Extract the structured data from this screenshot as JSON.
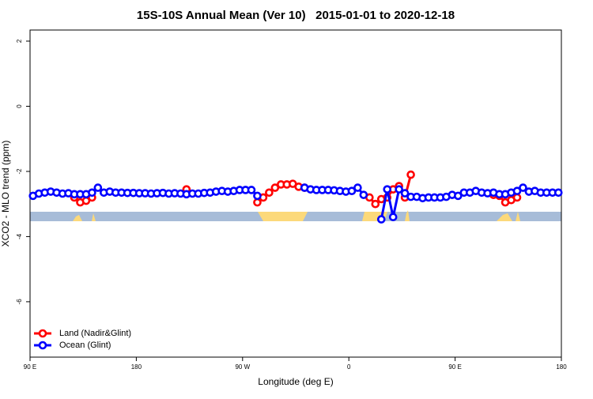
{
  "chart_data": {
    "type": "line",
    "title": "15S-10S Annual Mean (Ver 10)   2015-01-01 to 2020-12-18",
    "x_label": "Longitude (deg E)",
    "y_label": "XCO2 - MLO trend (ppm)",
    "xlim": [
      90,
      540
    ],
    "ylim": [
      -7.7,
      2.34
    ],
    "xticks": [
      {
        "value": 90,
        "label": "90 E"
      },
      180,
      {
        "value": 270,
        "label": "90 W"
      },
      {
        "value": 360,
        "label": "0"
      },
      {
        "value": 450,
        "label": "90 E"
      },
      {
        "value": 540,
        "label": "180"
      }
    ],
    "yticks": [
      -6,
      -4,
      -2,
      0,
      2
    ],
    "legend": "bottom-left",
    "x": [
      92.5,
      97.5,
      102.5,
      107.5,
      112.5,
      117.5,
      122.5,
      127.5,
      132.5,
      137.5,
      142.5,
      147.5,
      152.5,
      157.5,
      162.5,
      167.5,
      172.5,
      177.5,
      182.5,
      187.5,
      192.5,
      197.5,
      202.5,
      207.5,
      212.5,
      217.5,
      222.5,
      227.5,
      232.5,
      237.5,
      242.5,
      247.5,
      252.5,
      257.5,
      262.5,
      267.5,
      272.5,
      277.5,
      282.5,
      287.5,
      292.5,
      297.5,
      302.5,
      307.5,
      312.5,
      317.5,
      322.5,
      327.5,
      332.5,
      337.5,
      342.5,
      347.5,
      352.5,
      357.5,
      362.5,
      367.5,
      372.5,
      377.5,
      382.5,
      387.5,
      392.5,
      397.5,
      402.5,
      407.5,
      412.5,
      417.5,
      422.5,
      427.5,
      432.5,
      437.5,
      442.5,
      447.5,
      452.5,
      457.5,
      462.5,
      467.5,
      472.5,
      477.5,
      482.5,
      487.5,
      492.5,
      497.5,
      502.5,
      507.5,
      512.5,
      517.5,
      522.5,
      527.5,
      532.5,
      537.5
    ],
    "series": [
      {
        "name": "Land (Nadir&Glint)",
        "color": "#ff0000",
        "values": [
          null,
          null,
          null,
          null,
          null,
          null,
          null,
          -2.8,
          -2.95,
          -2.9,
          -2.8,
          null,
          null,
          null,
          null,
          null,
          null,
          null,
          null,
          null,
          null,
          null,
          null,
          null,
          null,
          null,
          -2.55,
          null,
          null,
          null,
          null,
          null,
          null,
          null,
          null,
          null,
          null,
          null,
          -2.95,
          -2.8,
          -2.65,
          -2.5,
          -2.4,
          -2.4,
          -2.38,
          -2.47,
          -2.5,
          null,
          null,
          null,
          null,
          null,
          null,
          null,
          null,
          null,
          null,
          -2.8,
          -3.0,
          -2.85,
          -2.8,
          -2.55,
          -2.45,
          -2.8,
          -2.1,
          null,
          null,
          null,
          null,
          null,
          null,
          null,
          null,
          null,
          null,
          null,
          null,
          null,
          -2.72,
          -2.75,
          -2.95,
          -2.88,
          -2.8,
          null,
          null,
          null,
          null,
          null,
          null,
          null
        ]
      },
      {
        "name": "Ocean (Glint)",
        "color": "#0000ff",
        "values": [
          -2.75,
          -2.68,
          -2.65,
          -2.62,
          -2.65,
          -2.68,
          -2.67,
          -2.7,
          -2.7,
          -2.7,
          -2.65,
          -2.5,
          -2.65,
          -2.62,
          -2.65,
          -2.65,
          -2.66,
          -2.66,
          -2.67,
          -2.67,
          -2.68,
          -2.67,
          -2.66,
          -2.68,
          -2.67,
          -2.68,
          -2.7,
          -2.68,
          -2.68,
          -2.66,
          -2.65,
          -2.62,
          -2.6,
          -2.62,
          -2.6,
          -2.57,
          -2.57,
          -2.57,
          -2.75,
          null,
          null,
          null,
          null,
          null,
          null,
          null,
          -2.5,
          -2.55,
          -2.57,
          -2.57,
          -2.57,
          -2.58,
          -2.6,
          -2.62,
          -2.6,
          -2.5,
          -2.72,
          null,
          null,
          -3.47,
          -2.55,
          -3.4,
          -2.55,
          -2.67,
          -2.78,
          -2.78,
          -2.82,
          -2.8,
          -2.8,
          -2.8,
          -2.78,
          -2.72,
          -2.75,
          -2.65,
          -2.65,
          -2.6,
          -2.65,
          -2.67,
          -2.65,
          -2.7,
          -2.7,
          -2.65,
          -2.6,
          -2.5,
          -2.62,
          -2.6,
          -2.65,
          -2.65,
          -2.65,
          -2.65
        ]
      }
    ]
  }
}
